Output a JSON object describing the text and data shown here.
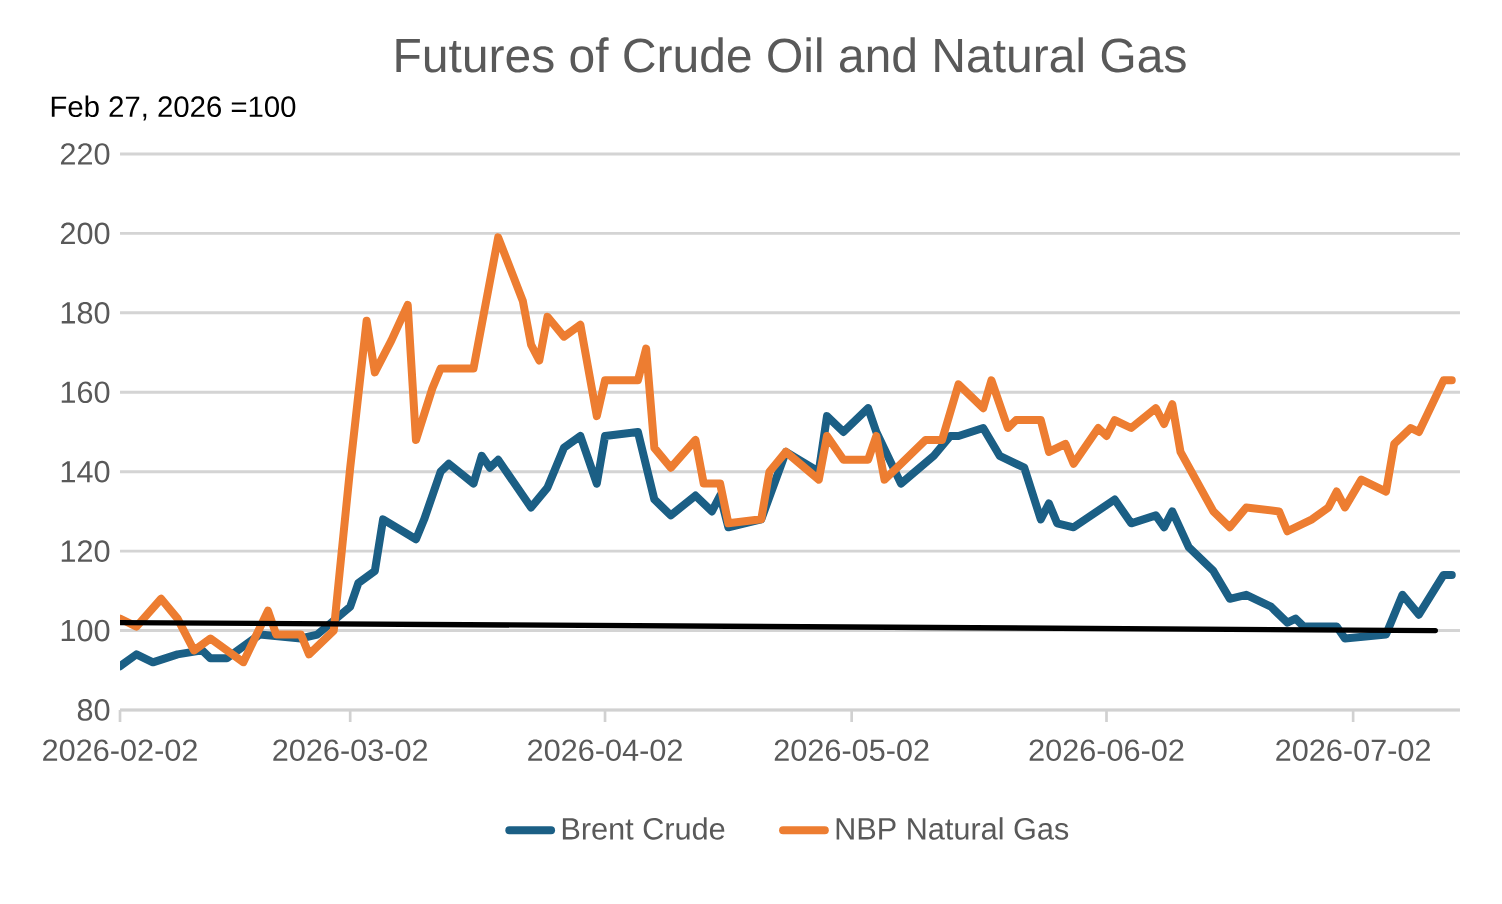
{
  "chart_data": {
    "type": "line",
    "title": "Futures of Crude Oil and Natural Gas",
    "ylabel": "Feb 27, 2026 =100",
    "xlim": [
      "2026-02-02",
      "2026-07-15"
    ],
    "xticks": [
      "2026-02-02",
      "2026-03-02",
      "2026-04-02",
      "2026-05-02",
      "2026-06-02",
      "2026-07-02"
    ],
    "ylim": [
      80,
      220
    ],
    "yticks": [
      80,
      100,
      120,
      140,
      160,
      180,
      200,
      220
    ],
    "grid": "y",
    "legend": "bottom",
    "marker": "none",
    "line_style": "solid",
    "series": [
      {
        "name": "Brent Crude",
        "color": "#1b5f85",
        "x": [
          "2026-02-02",
          "2026-02-04",
          "2026-02-06",
          "2026-02-09",
          "2026-02-12",
          "2026-02-13",
          "2026-02-15",
          "2026-02-19",
          "2026-02-24",
          "2026-02-26",
          "2026-03-02",
          "2026-03-03",
          "2026-03-05",
          "2026-03-06",
          "2026-03-10",
          "2026-03-11",
          "2026-03-13",
          "2026-03-14",
          "2026-03-17",
          "2026-03-18",
          "2026-03-19",
          "2026-03-20",
          "2026-03-24",
          "2026-03-26",
          "2026-03-28",
          "2026-03-30",
          "2026-04-01",
          "2026-04-02",
          "2026-04-06",
          "2026-04-08",
          "2026-04-10",
          "2026-04-13",
          "2026-04-15",
          "2026-04-16",
          "2026-04-17",
          "2026-04-21",
          "2026-04-24",
          "2026-04-28",
          "2026-04-29",
          "2026-05-01",
          "2026-05-04",
          "2026-05-05",
          "2026-05-08",
          "2026-05-12",
          "2026-05-14",
          "2026-05-15",
          "2026-05-18",
          "2026-05-20",
          "2026-05-23",
          "2026-05-25",
          "2026-05-26",
          "2026-05-27",
          "2026-05-29",
          "2026-06-03",
          "2026-06-05",
          "2026-06-08",
          "2026-06-09",
          "2026-06-10",
          "2026-06-12",
          "2026-06-15",
          "2026-06-17",
          "2026-06-19",
          "2026-06-22",
          "2026-06-24",
          "2026-06-25",
          "2026-06-26",
          "2026-06-30",
          "2026-07-01",
          "2026-07-06",
          "2026-07-08",
          "2026-07-10",
          "2026-07-13",
          "2026-07-14"
        ],
        "values": [
          91,
          94,
          92,
          94,
          95,
          93,
          93,
          99,
          98,
          99,
          106,
          112,
          115,
          128,
          123,
          128,
          140,
          142,
          137,
          144,
          141,
          143,
          131,
          136,
          146,
          149,
          137,
          149,
          150,
          133,
          129,
          134,
          130,
          134,
          126,
          128,
          145,
          140,
          154,
          150,
          156,
          150,
          137,
          144,
          149,
          149,
          151,
          144,
          141,
          128,
          132,
          127,
          126,
          133,
          127,
          129,
          126,
          130,
          121,
          115,
          108,
          109,
          106,
          102,
          103,
          101,
          101,
          98,
          99,
          109,
          104,
          114,
          114
        ]
      },
      {
        "name": "NBP Natural Gas",
        "color": "#ed7d31",
        "x": [
          "2026-02-02",
          "2026-02-04",
          "2026-02-07",
          "2026-02-09",
          "2026-02-11",
          "2026-02-13",
          "2026-02-17",
          "2026-02-20",
          "2026-02-21",
          "2026-02-24",
          "2026-02-25",
          "2026-02-28",
          "2026-03-02",
          "2026-03-04",
          "2026-03-05",
          "2026-03-07",
          "2026-03-09",
          "2026-03-10",
          "2026-03-12",
          "2026-03-13",
          "2026-03-17",
          "2026-03-18",
          "2026-03-20",
          "2026-03-23",
          "2026-03-24",
          "2026-03-25",
          "2026-03-26",
          "2026-03-28",
          "2026-03-30",
          "2026-04-01",
          "2026-04-02",
          "2026-04-06",
          "2026-04-07",
          "2026-04-08",
          "2026-04-10",
          "2026-04-13",
          "2026-04-14",
          "2026-04-16",
          "2026-04-17",
          "2026-04-21",
          "2026-04-22",
          "2026-04-24",
          "2026-04-28",
          "2026-04-29",
          "2026-05-01",
          "2026-05-04",
          "2026-05-05",
          "2026-05-06",
          "2026-05-08",
          "2026-05-11",
          "2026-05-13",
          "2026-05-15",
          "2026-05-18",
          "2026-05-19",
          "2026-05-21",
          "2026-05-22",
          "2026-05-25",
          "2026-05-26",
          "2026-05-28",
          "2026-05-29",
          "2026-06-01",
          "2026-06-02",
          "2026-06-03",
          "2026-06-05",
          "2026-06-08",
          "2026-06-09",
          "2026-06-10",
          "2026-06-11",
          "2026-06-15",
          "2026-06-17",
          "2026-06-19",
          "2026-06-23",
          "2026-06-24",
          "2026-06-27",
          "2026-06-29",
          "2026-06-30",
          "2026-07-01",
          "2026-07-03",
          "2026-07-06",
          "2026-07-07",
          "2026-07-09",
          "2026-07-10",
          "2026-07-13",
          "2026-07-14"
        ],
        "values": [
          103,
          101,
          108,
          103,
          95,
          98,
          92,
          105,
          99,
          99,
          94,
          100,
          141,
          178,
          165,
          173,
          182,
          148,
          161,
          166,
          166,
          177,
          199,
          183,
          172,
          168,
          179,
          174,
          177,
          154,
          163,
          163,
          171,
          146,
          141,
          148,
          137,
          137,
          127,
          128,
          140,
          145,
          138,
          149,
          143,
          143,
          149,
          138,
          142,
          148,
          148,
          162,
          156,
          163,
          151,
          153,
          153,
          145,
          147,
          142,
          151,
          149,
          153,
          151,
          156,
          152,
          157,
          145,
          130,
          126,
          131,
          130,
          125,
          128,
          131,
          135,
          131,
          138,
          135,
          147,
          151,
          150,
          163,
          163
        ]
      },
      {
        "color": "#000000",
        "x": [
          "2026-02-02",
          "2026-07-12"
        ],
        "values": [
          102,
          100
        ]
      }
    ]
  }
}
